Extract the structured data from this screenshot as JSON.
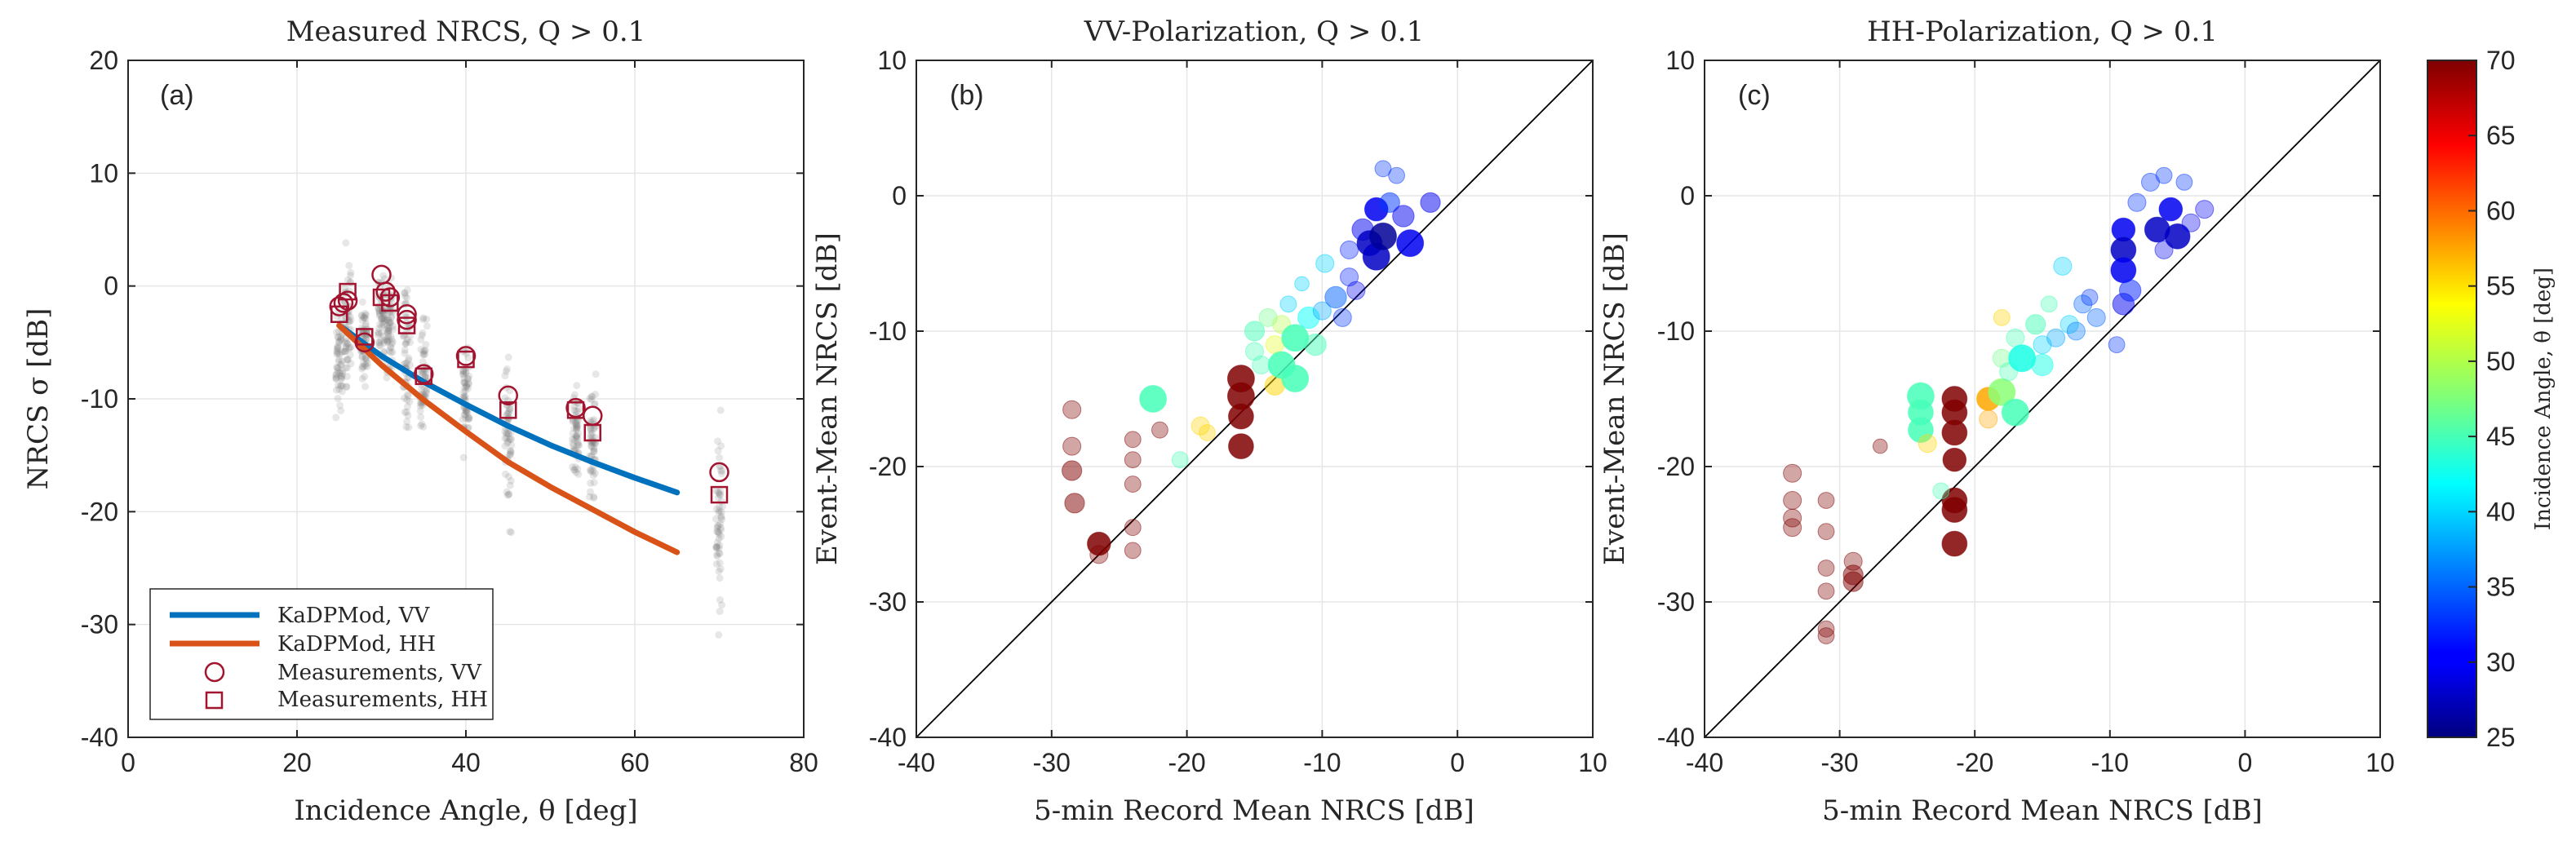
{
  "chart_data": [
    {
      "type": "scatter",
      "panel_label": "(a)",
      "title": "Measured NRCS, Q > 0.1",
      "xlabel": "Incidence Angle, θ [deg]",
      "ylabel": "NRCS σ [dB]",
      "xlim": [
        0,
        80
      ],
      "ylim": [
        -40,
        20
      ],
      "xticks": [
        "0",
        "20",
        "40",
        "60",
        "80"
      ],
      "yticks": [
        "20",
        "10",
        "0",
        "-10",
        "-20",
        "-30",
        "-40"
      ],
      "grid": true,
      "legend_position": "bottom-left",
      "legend": [
        "KaDPMod, VV",
        "KaDPMod, HH",
        "Measurements, VV",
        "Measurements, HH"
      ],
      "raw_spread": [
        {
          "x": 25,
          "ymin": -13,
          "ymax": 1
        },
        {
          "x": 26,
          "ymin": -11,
          "ymax": 5.5
        },
        {
          "x": 28,
          "ymin": -10,
          "ymax": 0
        },
        {
          "x": 30,
          "ymin": -8,
          "ymax": 2.5
        },
        {
          "x": 31,
          "ymin": -9,
          "ymax": 2
        },
        {
          "x": 33,
          "ymin": -15,
          "ymax": 3
        },
        {
          "x": 35,
          "ymin": -16,
          "ymax": 0
        },
        {
          "x": 40,
          "ymin": -16,
          "ymax": -3
        },
        {
          "x": 45,
          "ymin": -23,
          "ymax": -4
        },
        {
          "x": 53,
          "ymin": -19,
          "ymax": -7
        },
        {
          "x": 55,
          "ymin": -21,
          "ymax": -7
        },
        {
          "x": 70,
          "ymin": -32,
          "ymax": -8.5
        }
      ],
      "series": [
        {
          "name": "KaDPMod, VV",
          "color": "#0072BD",
          "kind": "line",
          "x": [
            25,
            30,
            35,
            40,
            45,
            50,
            55,
            60,
            65
          ],
          "y": [
            -3.5,
            -6.2,
            -8.5,
            -10.5,
            -12.4,
            -14.1,
            -15.6,
            -17.0,
            -18.3
          ]
        },
        {
          "name": "KaDPMod, HH",
          "color": "#D95319",
          "kind": "line",
          "x": [
            25,
            30,
            35,
            40,
            45,
            50,
            55,
            60,
            65
          ],
          "y": [
            -3.5,
            -7.0,
            -10.1,
            -12.9,
            -15.6,
            -17.8,
            -19.8,
            -21.8,
            -23.6
          ]
        },
        {
          "name": "Measurements, VV",
          "color": "#A2142F",
          "kind": "circle",
          "x": [
            25,
            25.5,
            26,
            28,
            30,
            30.5,
            31,
            33,
            33,
            35,
            40,
            45,
            53,
            55,
            70
          ],
          "y": [
            -1.8,
            -1.5,
            -1.3,
            -5.0,
            1.0,
            -0.5,
            -1.0,
            -2.5,
            -3.0,
            -7.8,
            -6.2,
            -9.7,
            -10.8,
            -11.5,
            -16.5
          ]
        },
        {
          "name": "Measurements, HH",
          "color": "#A2142F",
          "kind": "square",
          "x": [
            25,
            26,
            28,
            30,
            31,
            33,
            35,
            40,
            45,
            53,
            55,
            70
          ],
          "y": [
            -2.5,
            -0.5,
            -4.5,
            -1.0,
            -1.5,
            -3.5,
            -8.0,
            -6.5,
            -11.0,
            -11.0,
            -13.0,
            -18.5
          ]
        }
      ]
    },
    {
      "type": "scatter",
      "panel_label": "(b)",
      "title": "VV-Polarization, Q > 0.1",
      "xlabel": "5-min Record Mean NRCS [dB]",
      "ylabel": "Event-Mean NRCS [dB]",
      "xlim": [
        -40,
        10
      ],
      "ylim": [
        -40,
        10
      ],
      "xticks": [
        "-40",
        "-30",
        "-20",
        "-10",
        "0",
        "10"
      ],
      "yticks": [
        "10",
        "0",
        "-10",
        "-20",
        "-30",
        "-40"
      ],
      "grid": true,
      "one_to_one_line": true,
      "color_by": "incidence_angle",
      "points": [
        {
          "x": -28.5,
          "y": -15.8,
          "c": 70,
          "s": 1.0
        },
        {
          "x": -28.5,
          "y": -18.5,
          "c": 70,
          "s": 1.0
        },
        {
          "x": -28.5,
          "y": -20.3,
          "c": 70,
          "s": 1.1
        },
        {
          "x": -28.3,
          "y": -22.7,
          "c": 70,
          "s": 1.1
        },
        {
          "x": -26.5,
          "y": -25.7,
          "c": 70,
          "s": 1.3
        },
        {
          "x": -26.5,
          "y": -26.5,
          "c": 70,
          "s": 1.0
        },
        {
          "x": -24.0,
          "y": -18.0,
          "c": 70,
          "s": 0.9
        },
        {
          "x": -24.0,
          "y": -19.5,
          "c": 70,
          "s": 0.9
        },
        {
          "x": -24.0,
          "y": -21.3,
          "c": 70,
          "s": 0.9
        },
        {
          "x": -24.0,
          "y": -24.5,
          "c": 70,
          "s": 0.9
        },
        {
          "x": -24.0,
          "y": -26.2,
          "c": 70,
          "s": 0.9
        },
        {
          "x": -22.0,
          "y": -17.3,
          "c": 70,
          "s": 0.9
        },
        {
          "x": -16.0,
          "y": -13.5,
          "c": 70,
          "s": 1.5
        },
        {
          "x": -16.0,
          "y": -14.8,
          "c": 70,
          "s": 1.5
        },
        {
          "x": -16.0,
          "y": -16.3,
          "c": 70,
          "s": 1.4
        },
        {
          "x": -16.0,
          "y": -18.5,
          "c": 70,
          "s": 1.4
        },
        {
          "x": -22.5,
          "y": -15.0,
          "c": 45,
          "s": 1.5
        },
        {
          "x": -20.5,
          "y": -19.5,
          "c": 45,
          "s": 0.9
        },
        {
          "x": -19.0,
          "y": -17.0,
          "c": 55,
          "s": 1.0
        },
        {
          "x": -18.5,
          "y": -17.5,
          "c": 55,
          "s": 0.9
        },
        {
          "x": -15.0,
          "y": -10.0,
          "c": 45,
          "s": 1.1
        },
        {
          "x": -15.0,
          "y": -11.5,
          "c": 45,
          "s": 1.0
        },
        {
          "x": -14.5,
          "y": -12.5,
          "c": 45,
          "s": 1.0
        },
        {
          "x": -14.0,
          "y": -9.0,
          "c": 47,
          "s": 1.0
        },
        {
          "x": -13.5,
          "y": -11.0,
          "c": 52,
          "s": 1.0
        },
        {
          "x": -13.5,
          "y": -14.0,
          "c": 55,
          "s": 1.1
        },
        {
          "x": -13.0,
          "y": -9.5,
          "c": 50,
          "s": 1.0
        },
        {
          "x": -13.0,
          "y": -12.5,
          "c": 45,
          "s": 1.5
        },
        {
          "x": -12.5,
          "y": -8.0,
          "c": 40,
          "s": 0.9
        },
        {
          "x": -12.0,
          "y": -10.5,
          "c": 45,
          "s": 1.5
        },
        {
          "x": -12.0,
          "y": -13.5,
          "c": 45,
          "s": 1.5
        },
        {
          "x": -11.5,
          "y": -6.5,
          "c": 40,
          "s": 0.8
        },
        {
          "x": -11.0,
          "y": -9.0,
          "c": 42,
          "s": 1.2
        },
        {
          "x": -10.5,
          "y": -11.0,
          "c": 45,
          "s": 1.2
        },
        {
          "x": -10.0,
          "y": -8.5,
          "c": 38,
          "s": 1.0
        },
        {
          "x": -9.8,
          "y": -5.0,
          "c": 40,
          "s": 1.0
        },
        {
          "x": -9.0,
          "y": -7.5,
          "c": 35,
          "s": 1.2
        },
        {
          "x": -8.5,
          "y": -9.0,
          "c": 33,
          "s": 1.0
        },
        {
          "x": -8.0,
          "y": -4.0,
          "c": 32,
          "s": 1.0
        },
        {
          "x": -8.0,
          "y": -6.0,
          "c": 32,
          "s": 1.0
        },
        {
          "x": -7.5,
          "y": -7.0,
          "c": 30,
          "s": 1.0
        },
        {
          "x": -7.0,
          "y": -2.5,
          "c": 30,
          "s": 1.2
        },
        {
          "x": -6.5,
          "y": -3.5,
          "c": 28,
          "s": 1.4
        },
        {
          "x": -6.0,
          "y": -1.0,
          "c": 30,
          "s": 1.3
        },
        {
          "x": -6.0,
          "y": -4.5,
          "c": 28,
          "s": 1.5
        },
        {
          "x": -5.5,
          "y": 2.0,
          "c": 33,
          "s": 0.9
        },
        {
          "x": -5.5,
          "y": -3.0,
          "c": 26,
          "s": 1.5
        },
        {
          "x": -5.0,
          "y": -0.5,
          "c": 33,
          "s": 1.1
        },
        {
          "x": -4.5,
          "y": 1.5,
          "c": 33,
          "s": 0.9
        },
        {
          "x": -4.0,
          "y": -1.5,
          "c": 30,
          "s": 1.2
        },
        {
          "x": -3.5,
          "y": -3.5,
          "c": 30,
          "s": 1.5
        },
        {
          "x": -2.0,
          "y": -0.5,
          "c": 30,
          "s": 1.1
        }
      ]
    },
    {
      "type": "scatter",
      "panel_label": "(c)",
      "title": "HH-Polarization, Q > 0.1",
      "xlabel": "5-min Record Mean NRCS [dB]",
      "ylabel": "Event-Mean NRCS [dB]",
      "xlim": [
        -40,
        10
      ],
      "ylim": [
        -40,
        10
      ],
      "xticks": [
        "-40",
        "-30",
        "-20",
        "-10",
        "0",
        "10"
      ],
      "yticks": [
        "10",
        "0",
        "-10",
        "-20",
        "-30",
        "-40"
      ],
      "grid": true,
      "one_to_one_line": true,
      "color_by": "incidence_angle",
      "colorbar": {
        "label": "Incidence Angle, θ [deg]",
        "min": 25,
        "max": 70,
        "ticks": [
          "70",
          "65",
          "60",
          "55",
          "50",
          "45",
          "40",
          "35",
          "30",
          "25"
        ],
        "colormap": "jet"
      },
      "points": [
        {
          "x": -33.5,
          "y": -20.5,
          "c": 70,
          "s": 1.0
        },
        {
          "x": -33.5,
          "y": -22.5,
          "c": 70,
          "s": 1.0
        },
        {
          "x": -33.5,
          "y": -23.8,
          "c": 70,
          "s": 1.0
        },
        {
          "x": -33.5,
          "y": -24.5,
          "c": 70,
          "s": 1.0
        },
        {
          "x": -31.0,
          "y": -22.5,
          "c": 70,
          "s": 0.9
        },
        {
          "x": -31.0,
          "y": -24.8,
          "c": 70,
          "s": 0.9
        },
        {
          "x": -31.0,
          "y": -27.5,
          "c": 70,
          "s": 0.9
        },
        {
          "x": -31.0,
          "y": -29.2,
          "c": 70,
          "s": 0.9
        },
        {
          "x": -31.0,
          "y": -32.0,
          "c": 70,
          "s": 0.9
        },
        {
          "x": -31.0,
          "y": -32.5,
          "c": 70,
          "s": 0.9
        },
        {
          "x": -29.0,
          "y": -27.0,
          "c": 70,
          "s": 1.0
        },
        {
          "x": -29.0,
          "y": -28.0,
          "c": 70,
          "s": 1.1
        },
        {
          "x": -29.0,
          "y": -28.5,
          "c": 70,
          "s": 1.1
        },
        {
          "x": -27.0,
          "y": -18.5,
          "c": 70,
          "s": 0.8
        },
        {
          "x": -21.5,
          "y": -15.0,
          "c": 70,
          "s": 1.4
        },
        {
          "x": -21.5,
          "y": -16.0,
          "c": 70,
          "s": 1.4
        },
        {
          "x": -21.5,
          "y": -17.5,
          "c": 70,
          "s": 1.4
        },
        {
          "x": -21.5,
          "y": -19.5,
          "c": 70,
          "s": 1.3
        },
        {
          "x": -21.5,
          "y": -22.5,
          "c": 70,
          "s": 1.4
        },
        {
          "x": -21.5,
          "y": -23.2,
          "c": 70,
          "s": 1.4
        },
        {
          "x": -21.5,
          "y": -25.7,
          "c": 70,
          "s": 1.4
        },
        {
          "x": -24.0,
          "y": -14.8,
          "c": 45,
          "s": 1.5
        },
        {
          "x": -24.0,
          "y": -16.0,
          "c": 45,
          "s": 1.4
        },
        {
          "x": -24.0,
          "y": -17.3,
          "c": 45,
          "s": 1.4
        },
        {
          "x": -23.5,
          "y": -18.3,
          "c": 55,
          "s": 1.0
        },
        {
          "x": -22.5,
          "y": -21.8,
          "c": 45,
          "s": 0.9
        },
        {
          "x": -19.0,
          "y": -15.0,
          "c": 57,
          "s": 1.3
        },
        {
          "x": -19.0,
          "y": -16.5,
          "c": 57,
          "s": 1.0
        },
        {
          "x": -18.0,
          "y": -12.0,
          "c": 47,
          "s": 1.0
        },
        {
          "x": -18.0,
          "y": -14.5,
          "c": 48,
          "s": 1.5
        },
        {
          "x": -18.0,
          "y": -9.0,
          "c": 55,
          "s": 0.9
        },
        {
          "x": -17.5,
          "y": -13.0,
          "c": 45,
          "s": 1.0
        },
        {
          "x": -17.0,
          "y": -10.5,
          "c": 45,
          "s": 1.0
        },
        {
          "x": -17.0,
          "y": -16.0,
          "c": 45,
          "s": 1.5
        },
        {
          "x": -16.5,
          "y": -12.0,
          "c": 43,
          "s": 1.5
        },
        {
          "x": -15.5,
          "y": -9.5,
          "c": 45,
          "s": 1.1
        },
        {
          "x": -15.0,
          "y": -12.5,
          "c": 43,
          "s": 1.2
        },
        {
          "x": -15.0,
          "y": -11.0,
          "c": 40,
          "s": 1.0
        },
        {
          "x": -14.5,
          "y": -8.0,
          "c": 45,
          "s": 0.9
        },
        {
          "x": -14.0,
          "y": -10.5,
          "c": 38,
          "s": 1.0
        },
        {
          "x": -13.5,
          "y": -5.2,
          "c": 40,
          "s": 1.0
        },
        {
          "x": -13.0,
          "y": -9.5,
          "c": 40,
          "s": 1.0
        },
        {
          "x": -12.5,
          "y": -10.0,
          "c": 36,
          "s": 1.0
        },
        {
          "x": -12.0,
          "y": -8.0,
          "c": 35,
          "s": 1.0
        },
        {
          "x": -11.5,
          "y": -7.5,
          "c": 33,
          "s": 0.9
        },
        {
          "x": -11.0,
          "y": -9.0,
          "c": 35,
          "s": 1.0
        },
        {
          "x": -9.5,
          "y": -11.0,
          "c": 33,
          "s": 0.9
        },
        {
          "x": -9.0,
          "y": -2.5,
          "c": 30,
          "s": 1.3
        },
        {
          "x": -9.0,
          "y": -4.0,
          "c": 28,
          "s": 1.4
        },
        {
          "x": -9.0,
          "y": -5.5,
          "c": 30,
          "s": 1.4
        },
        {
          "x": -9.0,
          "y": -8.0,
          "c": 30,
          "s": 1.2
        },
        {
          "x": -8.5,
          "y": -7.0,
          "c": 32,
          "s": 1.2
        },
        {
          "x": -8.0,
          "y": -0.5,
          "c": 33,
          "s": 1.0
        },
        {
          "x": -7.0,
          "y": 1.0,
          "c": 33,
          "s": 1.0
        },
        {
          "x": -6.5,
          "y": -2.5,
          "c": 28,
          "s": 1.4
        },
        {
          "x": -6.0,
          "y": 1.5,
          "c": 33,
          "s": 0.9
        },
        {
          "x": -6.0,
          "y": -4.0,
          "c": 30,
          "s": 1.0
        },
        {
          "x": -5.5,
          "y": -1.0,
          "c": 30,
          "s": 1.3
        },
        {
          "x": -5.0,
          "y": -3.0,
          "c": 28,
          "s": 1.4
        },
        {
          "x": -4.5,
          "y": 1.0,
          "c": 33,
          "s": 0.9
        },
        {
          "x": -4.0,
          "y": -2.0,
          "c": 30,
          "s": 1.0
        },
        {
          "x": -3.0,
          "y": -1.0,
          "c": 30,
          "s": 1.0
        }
      ]
    }
  ]
}
